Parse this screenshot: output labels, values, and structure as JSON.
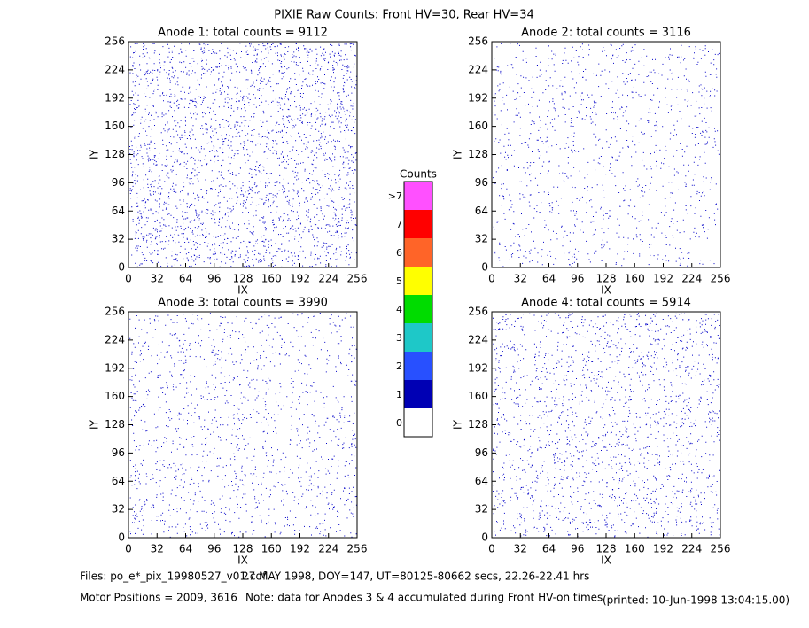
{
  "title": "PIXIE Raw Counts:  Front HV=30, Rear HV=34",
  "chart_data": [
    {
      "type": "heatmap",
      "title": "Anode 1: total counts = 9112",
      "xlabel": "IX",
      "ylabel": "IY",
      "xlim": [
        0,
        256
      ],
      "ylim": [
        0,
        256
      ],
      "xticks": [
        0,
        32,
        64,
        96,
        128,
        160,
        192,
        224,
        256
      ],
      "yticks": [
        0,
        32,
        64,
        96,
        128,
        160,
        192,
        224,
        256
      ]
    },
    {
      "type": "heatmap",
      "title": "Anode 2: total counts = 3116",
      "xlabel": "IX",
      "ylabel": "IY",
      "xlim": [
        0,
        256
      ],
      "ylim": [
        0,
        256
      ],
      "xticks": [
        0,
        32,
        64,
        96,
        128,
        160,
        192,
        224,
        256
      ],
      "yticks": [
        0,
        32,
        64,
        96,
        128,
        160,
        192,
        224,
        256
      ]
    },
    {
      "type": "heatmap",
      "title": "Anode 3: total counts = 3990",
      "xlabel": "IX",
      "ylabel": "IY",
      "xlim": [
        0,
        256
      ],
      "ylim": [
        0,
        256
      ],
      "xticks": [
        0,
        32,
        64,
        96,
        128,
        160,
        192,
        224,
        256
      ],
      "yticks": [
        0,
        32,
        64,
        96,
        128,
        160,
        192,
        224,
        256
      ]
    },
    {
      "type": "heatmap",
      "title": "Anode 4: total counts = 5914",
      "xlabel": "IX",
      "ylabel": "IY",
      "xlim": [
        0,
        256
      ],
      "ylim": [
        0,
        256
      ],
      "xticks": [
        0,
        32,
        64,
        96,
        128,
        160,
        192,
        224,
        256
      ],
      "yticks": [
        0,
        32,
        64,
        96,
        128,
        160,
        192,
        224,
        256
      ]
    }
  ],
  "colorbar": {
    "title": "Counts",
    "labels": [
      "0",
      "1",
      "2",
      "3",
      "4",
      "5",
      "6",
      "7",
      ">7"
    ],
    "colors": [
      "#ffffff",
      "#0000b4",
      "#2850ff",
      "#1ec8c8",
      "#00dc00",
      "#ffff00",
      "#ff6428",
      "#ff0000",
      "#ff50ff"
    ]
  },
  "footer": {
    "files": "Files: po_e*_pix_19980527_v01.cdf",
    "date": "27 MAY 1998, DOY=147, UT=80125-80662 secs, 22.26-22.41 hrs",
    "motor": "Motor Positions = 2009, 3616",
    "note": "Note: data for Anodes 3 & 4 accumulated during Front HV-on times",
    "printed": "(printed: 10-Jun-1998 13:04:15.00)"
  }
}
